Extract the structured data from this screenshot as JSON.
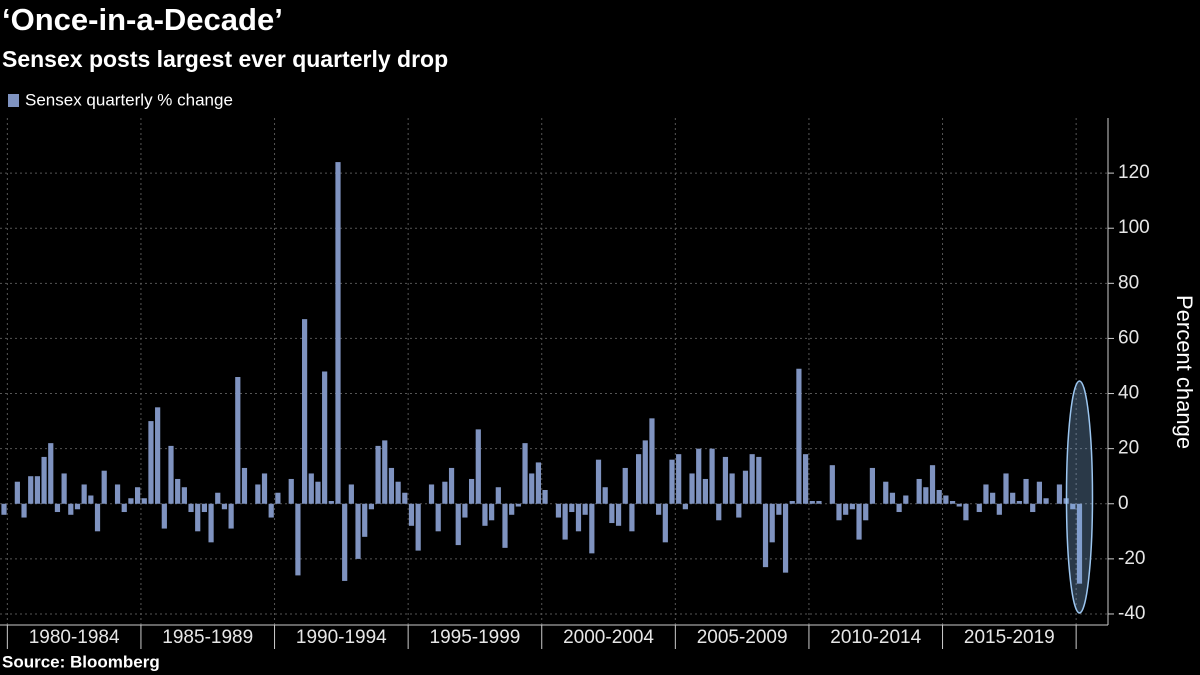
{
  "chart_data": {
    "type": "bar",
    "title": "‘Once-in-a-Decade’",
    "subtitle": "Sensex posts largest ever quarterly drop",
    "source": "Source: Bloomberg",
    "ylabel": "Percent change",
    "series": [
      {
        "name": "Sensex quarterly % change",
        "color": "#7f93c0",
        "values": [
          -4,
          0,
          8,
          -5,
          10,
          10,
          17,
          22,
          -3,
          11,
          -4,
          -2,
          7,
          3,
          -10,
          12,
          0,
          7,
          -3,
          2,
          6,
          2,
          30,
          35,
          -9,
          21,
          9,
          6,
          -3,
          -10,
          -3,
          -14,
          4,
          -2,
          -9,
          46,
          13,
          0,
          7,
          11,
          -5,
          4,
          0,
          9,
          -26,
          67,
          11,
          8,
          48,
          1,
          124,
          -28,
          7,
          -20,
          -12,
          -2,
          21,
          23,
          13,
          8,
          4,
          -8,
          -17,
          0,
          7,
          -10,
          8,
          13,
          -15,
          -5,
          9,
          27,
          -8,
          -6,
          6,
          -16,
          -4,
          -1,
          22,
          11,
          15,
          5,
          0,
          -5,
          -13,
          -3,
          -10,
          -4,
          -18,
          16,
          6,
          -7,
          -8,
          13,
          -10,
          18,
          23,
          31,
          -4,
          -14,
          16,
          18,
          -2,
          11,
          20,
          9,
          20,
          -6,
          17,
          11,
          -5,
          12,
          18,
          17,
          -23,
          -14,
          -4,
          -25,
          1,
          49,
          18,
          1,
          1,
          0,
          14,
          -6,
          -4,
          -2,
          -13,
          -6,
          13,
          0,
          8,
          4,
          -3,
          3,
          0,
          9,
          6,
          14,
          5,
          3,
          1,
          -1,
          -6,
          0,
          -3,
          7,
          4,
          -4,
          11,
          4,
          1,
          9,
          -3,
          8,
          2,
          0,
          7,
          2,
          -2,
          -29
        ]
      }
    ],
    "periods": [
      "1980-1984",
      "1985-1989",
      "1990-1994",
      "1995-1999",
      "2000-2004",
      "2005-2009",
      "2010-2014",
      "2015-2019"
    ],
    "ylim": [
      -44,
      140
    ],
    "yticks": [
      -40,
      -20,
      0,
      20,
      40,
      60,
      80,
      100,
      120
    ],
    "grid": true,
    "legend": "top-left"
  }
}
